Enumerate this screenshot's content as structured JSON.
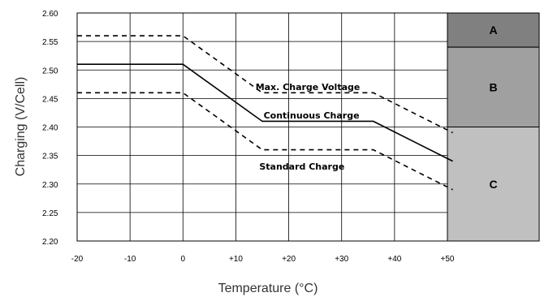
{
  "chart_data": {
    "type": "line",
    "title": "",
    "xlabel": "Temperature (°C)",
    "ylabel": "Charging (V/Cell)",
    "xlim": [
      -20,
      50
    ],
    "ylim": [
      2.2,
      2.6
    ],
    "x_ticks": [
      -20,
      -10,
      0,
      10,
      20,
      30,
      40,
      50
    ],
    "x_tick_labels": [
      "-20",
      "-10",
      "0",
      "+10",
      "+20",
      "+30",
      "+40",
      "+50"
    ],
    "y_ticks": [
      2.2,
      2.25,
      2.3,
      2.35,
      2.4,
      2.45,
      2.5,
      2.55,
      2.6
    ],
    "y_tick_labels": [
      "2.20",
      "2.25",
      "2.30",
      "2.35",
      "2.40",
      "2.45",
      "2.50",
      "2.55",
      "2.60"
    ],
    "grid": true,
    "series": [
      {
        "name": "Max. Charge Voltage",
        "style": "dashed",
        "color": "#000000",
        "x": [
          -20,
          0,
          15,
          36,
          51
        ],
        "y": [
          2.56,
          2.56,
          2.46,
          2.46,
          2.39
        ]
      },
      {
        "name": "Continuous Charge",
        "style": "solid",
        "color": "#000000",
        "x": [
          -20,
          0,
          15,
          36,
          51
        ],
        "y": [
          2.51,
          2.51,
          2.41,
          2.41,
          2.34
        ]
      },
      {
        "name": "Standard Charge",
        "style": "dashed",
        "color": "#000000",
        "x": [
          -20,
          0,
          15,
          36,
          51
        ],
        "y": [
          2.46,
          2.46,
          2.36,
          2.36,
          2.29
        ]
      }
    ],
    "zones": [
      {
        "label": "A",
        "y_from": 2.54,
        "y_to": 2.6,
        "color": "#808080"
      },
      {
        "label": "B",
        "y_from": 2.4,
        "y_to": 2.54,
        "color": "#a0a0a0"
      },
      {
        "label": "C",
        "y_from": 2.2,
        "y_to": 2.4,
        "color": "#c0c0c0"
      }
    ]
  }
}
